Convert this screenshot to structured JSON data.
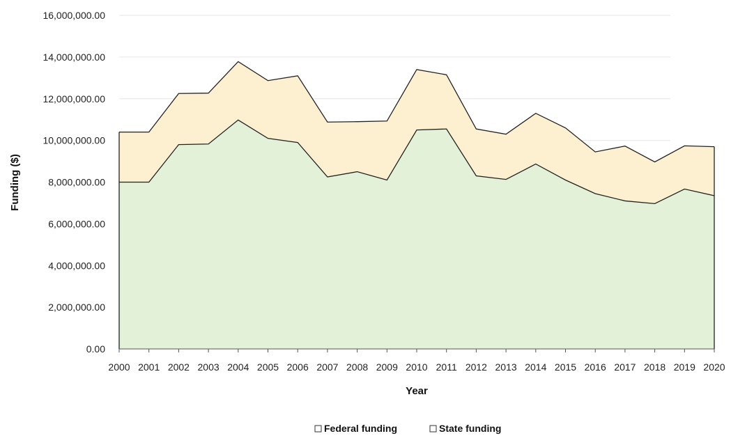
{
  "chart_data": {
    "type": "area",
    "stacked": true,
    "title": "",
    "xlabel": "Year",
    "ylabel": "Funding ($)",
    "ylim": [
      0,
      16000000
    ],
    "y_ticks": [
      "0.00",
      "2,000,000.00",
      "4,000,000.00",
      "6,000,000.00",
      "8,000,000.00",
      "10,000,000.00",
      "12,000,000.00",
      "14,000,000.00",
      "16,000,000.00"
    ],
    "y_tick_values": [
      0,
      2000000,
      4000000,
      6000000,
      8000000,
      10000000,
      12000000,
      14000000,
      16000000
    ],
    "grid": true,
    "legend_position": "bottom-center",
    "categories": [
      "2000",
      "2001",
      "2002",
      "2003",
      "2004",
      "2005",
      "2006",
      "2007",
      "2008",
      "2009",
      "2010",
      "2011",
      "2012",
      "2013",
      "2014",
      "2015",
      "2016",
      "2017",
      "2018",
      "2019",
      "2020"
    ],
    "series": [
      {
        "name": "Federal funding",
        "color": "#e3f1d9",
        "values": [
          8000000,
          8000000,
          9800000,
          9830000,
          10980000,
          10100000,
          9900000,
          8250000,
          8500000,
          8100000,
          10500000,
          10550000,
          8300000,
          8130000,
          8870000,
          8100000,
          7450000,
          7100000,
          6970000,
          7670000,
          7350000
        ]
      },
      {
        "name": "State funding",
        "color": "#fdf0d1",
        "values": [
          2400000,
          2400000,
          2450000,
          2440000,
          2800000,
          2770000,
          3200000,
          2630000,
          2400000,
          2830000,
          2900000,
          2600000,
          2250000,
          2170000,
          2430000,
          2500000,
          2000000,
          2630000,
          2000000,
          2070000,
          2350000
        ]
      }
    ]
  }
}
